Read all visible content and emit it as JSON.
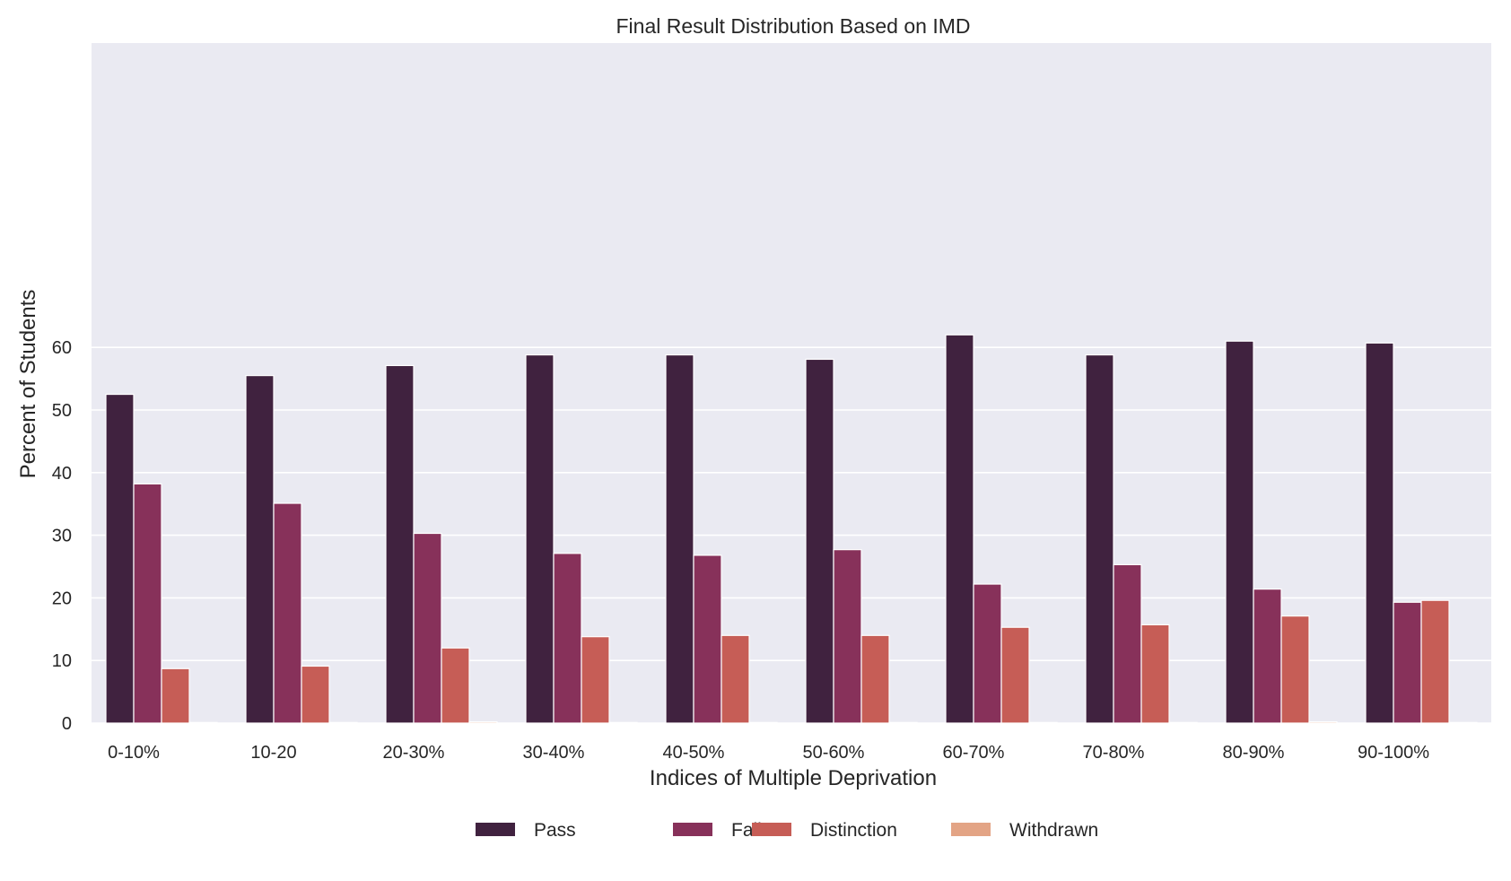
{
  "chart_data": {
    "type": "bar",
    "title": "Final Result Distribution Based on IMD",
    "xlabel": "Indices of Multiple Deprivation",
    "ylabel": "Percent of Students",
    "categories": [
      "0-10%",
      "10-20",
      "20-30%",
      "30-40%",
      "40-50%",
      "50-60%",
      "60-70%",
      "70-80%",
      "80-90%",
      "90-100%"
    ],
    "series": [
      {
        "name": "Pass",
        "color": "#40223f",
        "values": [
          52.5,
          55.5,
          57.1,
          58.8,
          58.8,
          58.1,
          62.0,
          58.8,
          61.0,
          60.7
        ]
      },
      {
        "name": "Fail",
        "color": "#87315a",
        "values": [
          38.2,
          35.1,
          30.3,
          27.1,
          26.8,
          27.7,
          22.2,
          25.3,
          21.4,
          19.3
        ]
      },
      {
        "name": "Distinction",
        "color": "#c65d56",
        "values": [
          8.7,
          9.1,
          12.0,
          13.8,
          14.0,
          14.0,
          15.3,
          15.7,
          17.1,
          19.6
        ]
      },
      {
        "name": "Withdrawn",
        "color": "#e3a485",
        "values": [
          0.1,
          0.1,
          0.2,
          0.1,
          0.1,
          0.1,
          0.1,
          0.1,
          0.2,
          0.1
        ]
      }
    ],
    "ylim": [
      0,
      65
    ],
    "yticks": [
      0,
      10,
      20,
      30,
      40,
      50,
      60
    ],
    "grid": true,
    "legend_position": "bottom-center",
    "background": "#eaeaf2"
  }
}
